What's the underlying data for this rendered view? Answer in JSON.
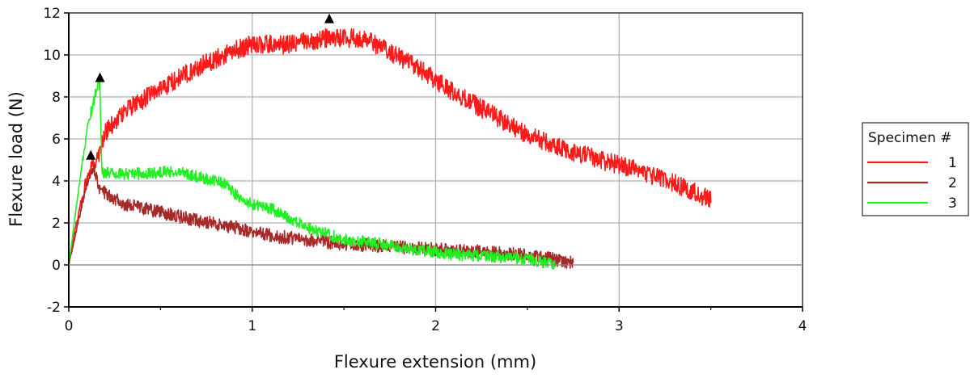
{
  "chart_data": {
    "type": "line",
    "xlabel": "Flexure extension (mm)",
    "ylabel": "Flexure load (N)",
    "xlim": [
      0,
      4
    ],
    "ylim": [
      -2,
      12
    ],
    "xticks": [
      0,
      1,
      2,
      3,
      4
    ],
    "yticks": [
      -2,
      0,
      2,
      4,
      6,
      8,
      10,
      12
    ],
    "grid": true,
    "legend": {
      "title": "Specimen #",
      "placement": "right"
    },
    "series": [
      {
        "name": "1",
        "color": "#ff1a1a",
        "noise": 0.45,
        "x": [
          0,
          0.03,
          0.08,
          0.12,
          0.15,
          0.17,
          0.2,
          0.3,
          0.5,
          0.7,
          0.9,
          1.0,
          1.2,
          1.4,
          1.6,
          1.7,
          1.9,
          2.1,
          2.3,
          2.5,
          2.7,
          2.9,
          3.1,
          3.3,
          3.5
        ],
        "y": [
          0,
          1.5,
          3.5,
          4.5,
          5.0,
          5.5,
          6.3,
          7.3,
          8.4,
          9.4,
          10.2,
          10.5,
          10.5,
          10.8,
          10.8,
          10.4,
          9.4,
          8.2,
          7.2,
          6.2,
          5.5,
          5.0,
          4.5,
          3.9,
          3.1
        ]
      },
      {
        "name": "2",
        "color": "#a52a2a",
        "noise": 0.32,
        "x": [
          0,
          0.05,
          0.1,
          0.13,
          0.17,
          0.3,
          0.5,
          0.7,
          0.9,
          1.1,
          1.3,
          1.5,
          1.7,
          1.9,
          2.1,
          2.3,
          2.5,
          2.75
        ],
        "y": [
          0,
          2.0,
          4.0,
          4.7,
          3.6,
          2.9,
          2.5,
          2.1,
          1.8,
          1.4,
          1.2,
          1.0,
          0.9,
          0.8,
          0.7,
          0.6,
          0.5,
          0.1
        ]
      },
      {
        "name": "3",
        "color": "#22ee22",
        "noise": 0.28,
        "x": [
          0,
          0.06,
          0.1,
          0.15,
          0.17,
          0.18,
          0.3,
          0.5,
          0.6,
          0.7,
          0.85,
          0.95,
          1.1,
          1.3,
          1.5,
          1.7,
          1.9,
          2.1,
          2.3,
          2.5,
          2.65
        ],
        "y": [
          0,
          4.0,
          6.5,
          8.3,
          8.7,
          4.4,
          4.3,
          4.4,
          4.5,
          4.2,
          3.9,
          3.0,
          2.7,
          1.8,
          1.2,
          1.0,
          0.7,
          0.5,
          0.4,
          0.3,
          0
        ]
      }
    ],
    "markers": [
      {
        "series": "1",
        "x": 1.42,
        "y": 11.7
      },
      {
        "series": "2",
        "x": 0.12,
        "y": 5.2
      },
      {
        "series": "3",
        "x": 0.17,
        "y": 8.9
      }
    ]
  }
}
